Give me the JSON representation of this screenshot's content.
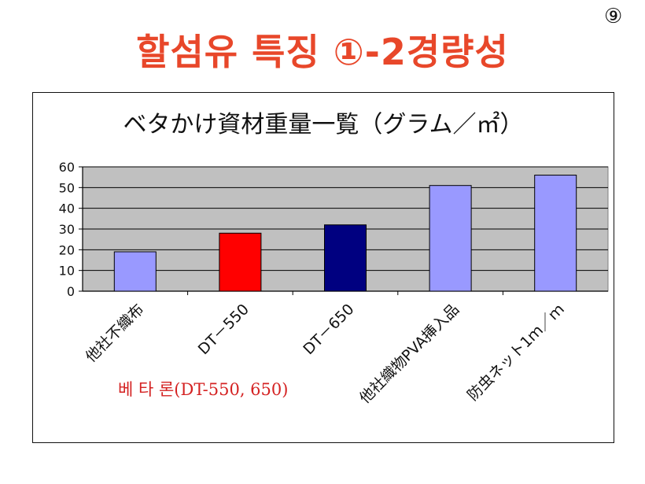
{
  "slide": {
    "number": "⑨",
    "title": "할섬유 특징 ①-2경량성"
  },
  "chart_data": {
    "type": "bar",
    "title": "ベタかけ資材重量一覧（グラム／㎡）",
    "xlabel": "",
    "ylabel": "",
    "ylim": [
      0,
      60
    ],
    "yticks": [
      0,
      10,
      20,
      30,
      40,
      50,
      60
    ],
    "grid": true,
    "legend": "none",
    "categories": [
      "他社不織布",
      "DT－550",
      "DT－650",
      "他社織物PVA挿入品",
      "防虫ネット1ｍ／ｍ"
    ],
    "values": [
      19,
      28,
      32,
      51,
      56
    ],
    "bar_colors": [
      "#9999ff",
      "#ff0000",
      "#000080",
      "#9999ff",
      "#9999ff"
    ],
    "plot_background": "#c0c0c0",
    "annotation": "베 타 론(DT-550, 650)"
  }
}
